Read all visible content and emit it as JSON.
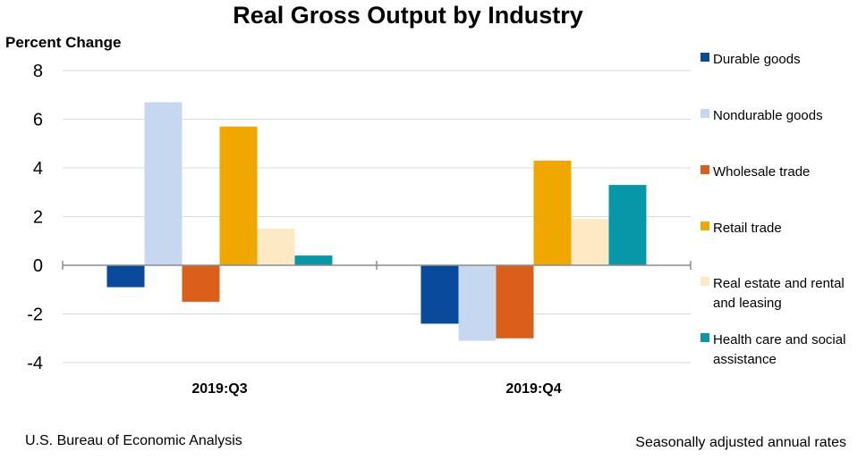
{
  "chart_data": {
    "type": "bar",
    "title": "Real Gross Output by Industry",
    "ylabel": "Percent Change",
    "xlabel": "",
    "categories": [
      "2019:Q3",
      "2019:Q4"
    ],
    "ylim": [
      -4,
      8
    ],
    "yticks": [
      8,
      6,
      4,
      2,
      0,
      -2,
      -4
    ],
    "grid": true,
    "legend_position": "right",
    "series": [
      {
        "name": "Durable goods",
        "color": "#0a4a9c",
        "values": [
          -0.9,
          -2.4
        ]
      },
      {
        "name": "Nondurable goods",
        "color": "#c5d8ef",
        "values": [
          6.7,
          -3.1
        ]
      },
      {
        "name": "Wholesale trade",
        "color": "#d95f1b",
        "values": [
          -1.5,
          -3.0
        ]
      },
      {
        "name": "Retail trade",
        "color": "#f0a800",
        "values": [
          5.7,
          4.3
        ]
      },
      {
        "name": "Real estate and rental and leasing",
        "color": "#fde9c4",
        "values": [
          1.5,
          1.9
        ]
      },
      {
        "name": "Health care and social assistance",
        "color": "#0897a8",
        "values": [
          0.4,
          3.3
        ]
      }
    ]
  },
  "footer": {
    "source": "U.S. Bureau of Economic Analysis",
    "note": "Seasonally adjusted annual rates"
  },
  "legend": {
    "items": [
      {
        "lines": [
          "Durable goods"
        ]
      },
      {
        "lines": [
          "Nondurable goods"
        ]
      },
      {
        "lines": [
          "Wholesale trade"
        ]
      },
      {
        "lines": [
          "Retail trade"
        ]
      },
      {
        "lines": [
          "Real estate and rental",
          "and leasing"
        ]
      },
      {
        "lines": [
          "Health care and social",
          "assistance"
        ]
      }
    ]
  }
}
